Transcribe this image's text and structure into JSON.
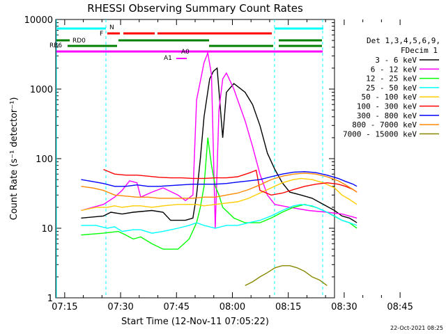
{
  "chart_data": {
    "type": "line",
    "title": "RHESSI Observing Summary Count Rates",
    "xlabel": "Start Time (12-Nov-11 07:05:22)",
    "ylabel": "Count Rate (s⁻¹ detector⁻¹)",
    "y_scale": "log",
    "ylim": [
      1,
      10000
    ],
    "xlim_minutes": [
      7.2,
      82
    ],
    "x_ticks": [
      "07:15",
      "07:30",
      "07:45",
      "08:00",
      "08:15",
      "08:30",
      "08:45"
    ],
    "y_ticks": [
      "1",
      "10",
      "100",
      "1000",
      "10000"
    ],
    "legend_header": [
      "Det 1,3,4,5,6,9,",
      "FDecim 1"
    ],
    "footer_date": "22-Oct-2021 08:25",
    "series": [
      {
        "name": "3 - 6 keV",
        "color": "#000000",
        "points": [
          [
            14,
            14
          ],
          [
            20,
            15
          ],
          [
            22,
            17
          ],
          [
            25,
            16
          ],
          [
            28,
            17
          ],
          [
            33,
            18
          ],
          [
            36,
            17
          ],
          [
            38,
            13
          ],
          [
            42,
            13
          ],
          [
            44,
            14
          ],
          [
            45,
            30
          ],
          [
            46,
            100
          ],
          [
            47,
            400
          ],
          [
            48.5,
            1400
          ],
          [
            49.5,
            1800
          ],
          [
            50.5,
            2000
          ],
          [
            52,
            200
          ],
          [
            53,
            900
          ],
          [
            55,
            1200
          ],
          [
            58,
            900
          ],
          [
            60,
            600
          ],
          [
            62,
            300
          ],
          [
            64,
            120
          ],
          [
            66,
            70
          ],
          [
            68,
            45
          ],
          [
            70,
            33
          ],
          [
            73,
            30
          ],
          [
            76,
            27
          ],
          [
            79,
            22
          ],
          [
            82,
            18
          ],
          [
            84,
            15
          ],
          [
            86,
            14
          ],
          [
            87,
            13
          ],
          [
            88,
            12
          ]
        ]
      },
      {
        "name": "6 - 12 keV",
        "color": "#ff00ff",
        "points": [
          [
            14,
            18
          ],
          [
            20,
            22
          ],
          [
            23,
            28
          ],
          [
            25,
            35
          ],
          [
            27,
            48
          ],
          [
            29,
            45
          ],
          [
            30,
            28
          ],
          [
            33,
            33
          ],
          [
            36,
            38
          ],
          [
            40,
            30
          ],
          [
            42,
            25
          ],
          [
            44,
            30
          ],
          [
            45,
            700
          ],
          [
            46,
            1300
          ],
          [
            47,
            2400
          ],
          [
            48,
            3300
          ],
          [
            49,
            1600
          ],
          [
            50,
            10
          ],
          [
            51,
            500
          ],
          [
            52,
            1400
          ],
          [
            53,
            1700
          ],
          [
            54,
            1300
          ],
          [
            55,
            1000
          ],
          [
            56,
            700
          ],
          [
            58,
            350
          ],
          [
            60,
            150
          ],
          [
            62,
            60
          ],
          [
            64,
            30
          ],
          [
            66,
            22
          ],
          [
            70,
            20
          ],
          [
            75,
            18
          ],
          [
            80,
            17
          ],
          [
            84,
            16
          ],
          [
            86,
            15
          ],
          [
            88,
            14
          ]
        ]
      },
      {
        "name": "12 - 25 keV",
        "color": "#00ff00",
        "points": [
          [
            14,
            8
          ],
          [
            20,
            8.5
          ],
          [
            24,
            9
          ],
          [
            26,
            8
          ],
          [
            28,
            7
          ],
          [
            30,
            7.5
          ],
          [
            33,
            6
          ],
          [
            36,
            5
          ],
          [
            40,
            5
          ],
          [
            43,
            7
          ],
          [
            45,
            12
          ],
          [
            46,
            20
          ],
          [
            47,
            40
          ],
          [
            48,
            200
          ],
          [
            49,
            80
          ],
          [
            50,
            40
          ],
          [
            51,
            30
          ],
          [
            52,
            20
          ],
          [
            55,
            14
          ],
          [
            58,
            12
          ],
          [
            62,
            12
          ],
          [
            65,
            14
          ],
          [
            68,
            17
          ],
          [
            71,
            20
          ],
          [
            74,
            22
          ],
          [
            77,
            20
          ],
          [
            80,
            17
          ],
          [
            84,
            13
          ],
          [
            86,
            12
          ],
          [
            88,
            10
          ]
        ]
      },
      {
        "name": "25 - 50 keV",
        "color": "#00ffff",
        "points": [
          [
            14,
            11
          ],
          [
            18,
            11
          ],
          [
            21,
            10
          ],
          [
            23,
            10.5
          ],
          [
            25,
            9
          ],
          [
            28,
            9.5
          ],
          [
            30,
            9.5
          ],
          [
            33,
            8.5
          ],
          [
            36,
            9
          ],
          [
            40,
            10
          ],
          [
            43,
            11
          ],
          [
            45,
            12
          ],
          [
            47,
            11
          ],
          [
            50,
            10
          ],
          [
            53,
            11
          ],
          [
            56,
            11
          ],
          [
            59,
            12
          ],
          [
            62,
            13
          ],
          [
            65,
            15
          ],
          [
            68,
            18
          ],
          [
            71,
            21
          ],
          [
            73,
            22
          ],
          [
            76,
            21
          ],
          [
            79,
            18
          ],
          [
            82,
            15
          ],
          [
            84,
            13
          ],
          [
            86,
            12
          ],
          [
            88,
            11
          ]
        ]
      },
      {
        "name": "50 - 100 keV",
        "color": "#ffcc00",
        "points": [
          [
            14,
            18
          ],
          [
            18,
            20
          ],
          [
            21,
            20
          ],
          [
            23,
            21
          ],
          [
            25,
            20
          ],
          [
            28,
            21
          ],
          [
            30,
            21
          ],
          [
            33,
            20
          ],
          [
            36,
            21
          ],
          [
            40,
            22
          ],
          [
            43,
            22
          ],
          [
            45,
            22
          ],
          [
            47,
            21
          ],
          [
            50,
            22
          ],
          [
            53,
            23
          ],
          [
            56,
            24
          ],
          [
            59,
            27
          ],
          [
            62,
            32
          ],
          [
            65,
            38
          ],
          [
            68,
            45
          ],
          [
            71,
            50
          ],
          [
            73,
            52
          ],
          [
            76,
            50
          ],
          [
            79,
            45
          ],
          [
            82,
            38
          ],
          [
            84,
            30
          ],
          [
            86,
            26
          ],
          [
            88,
            22
          ]
        ]
      },
      {
        "name": "100 - 300 keV",
        "color": "#ff0000",
        "points": [
          [
            20,
            70
          ],
          [
            23,
            60
          ],
          [
            26,
            58
          ],
          [
            29,
            58
          ],
          [
            32,
            56
          ],
          [
            35,
            54
          ],
          [
            38,
            53
          ],
          [
            41,
            53
          ],
          [
            44,
            52
          ],
          [
            47,
            52
          ],
          [
            50,
            53
          ],
          [
            53,
            53
          ],
          [
            56,
            55
          ],
          [
            59,
            62
          ],
          [
            61,
            68
          ],
          [
            62,
            35
          ],
          [
            65,
            30
          ],
          [
            68,
            32
          ],
          [
            71,
            36
          ],
          [
            74,
            40
          ],
          [
            77,
            43
          ],
          [
            80,
            45
          ],
          [
            83,
            43
          ],
          [
            85,
            40
          ],
          [
            87,
            36
          ],
          [
            88,
            33
          ]
        ]
      },
      {
        "name": "300 - 800 keV",
        "color": "#0000ff",
        "points": [
          [
            14,
            50
          ],
          [
            17,
            47
          ],
          [
            20,
            44
          ],
          [
            23,
            40
          ],
          [
            26,
            40
          ],
          [
            29,
            42
          ],
          [
            32,
            40
          ],
          [
            35,
            40
          ],
          [
            38,
            41
          ],
          [
            41,
            42
          ],
          [
            44,
            43
          ],
          [
            47,
            43
          ],
          [
            50,
            43
          ],
          [
            53,
            44
          ],
          [
            56,
            46
          ],
          [
            59,
            48
          ],
          [
            62,
            50
          ],
          [
            65,
            55
          ],
          [
            68,
            60
          ],
          [
            71,
            64
          ],
          [
            74,
            65
          ],
          [
            77,
            63
          ],
          [
            80,
            58
          ],
          [
            83,
            52
          ],
          [
            85,
            47
          ],
          [
            87,
            43
          ],
          [
            88,
            40
          ]
        ]
      },
      {
        "name": "800 - 7000 keV",
        "color": "#ff8800",
        "points": [
          [
            14,
            40
          ],
          [
            17,
            38
          ],
          [
            20,
            35
          ],
          [
            23,
            30
          ],
          [
            26,
            29
          ],
          [
            29,
            28
          ],
          [
            32,
            28
          ],
          [
            35,
            27
          ],
          [
            38,
            27
          ],
          [
            41,
            27
          ],
          [
            44,
            27
          ],
          [
            47,
            28
          ],
          [
            50,
            28
          ],
          [
            53,
            30
          ],
          [
            56,
            32
          ],
          [
            59,
            36
          ],
          [
            62,
            42
          ],
          [
            65,
            50
          ],
          [
            68,
            56
          ],
          [
            71,
            60
          ],
          [
            74,
            62
          ],
          [
            77,
            60
          ],
          [
            80,
            55
          ],
          [
            83,
            48
          ],
          [
            85,
            42
          ],
          [
            87,
            36
          ],
          [
            88,
            33
          ]
        ]
      },
      {
        "name": "7000 - 15000 keV",
        "color": "#888800",
        "points": [
          [
            58,
            1.5
          ],
          [
            60,
            1.7
          ],
          [
            62,
            2.0
          ],
          [
            64,
            2.3
          ],
          [
            66,
            2.7
          ],
          [
            68,
            2.9
          ],
          [
            70,
            2.9
          ],
          [
            72,
            2.7
          ],
          [
            74,
            2.4
          ],
          [
            76,
            2.0
          ],
          [
            78,
            1.8
          ],
          [
            80,
            1.5
          ]
        ]
      }
    ],
    "annotations": {
      "N": {
        "label": "N",
        "color": "#00ffff"
      },
      "F": {
        "label": "F",
        "color": "#ff0000"
      },
      "RD0": {
        "label": "RD0",
        "color": "#008000"
      },
      "RB6": {
        "label": "RB6",
        "color": "#008000"
      },
      "A1": {
        "label": "A1",
        "color": "#ff00ff"
      },
      "A0": {
        "label": "A0",
        "color": "#ff00ff"
      }
    }
  }
}
